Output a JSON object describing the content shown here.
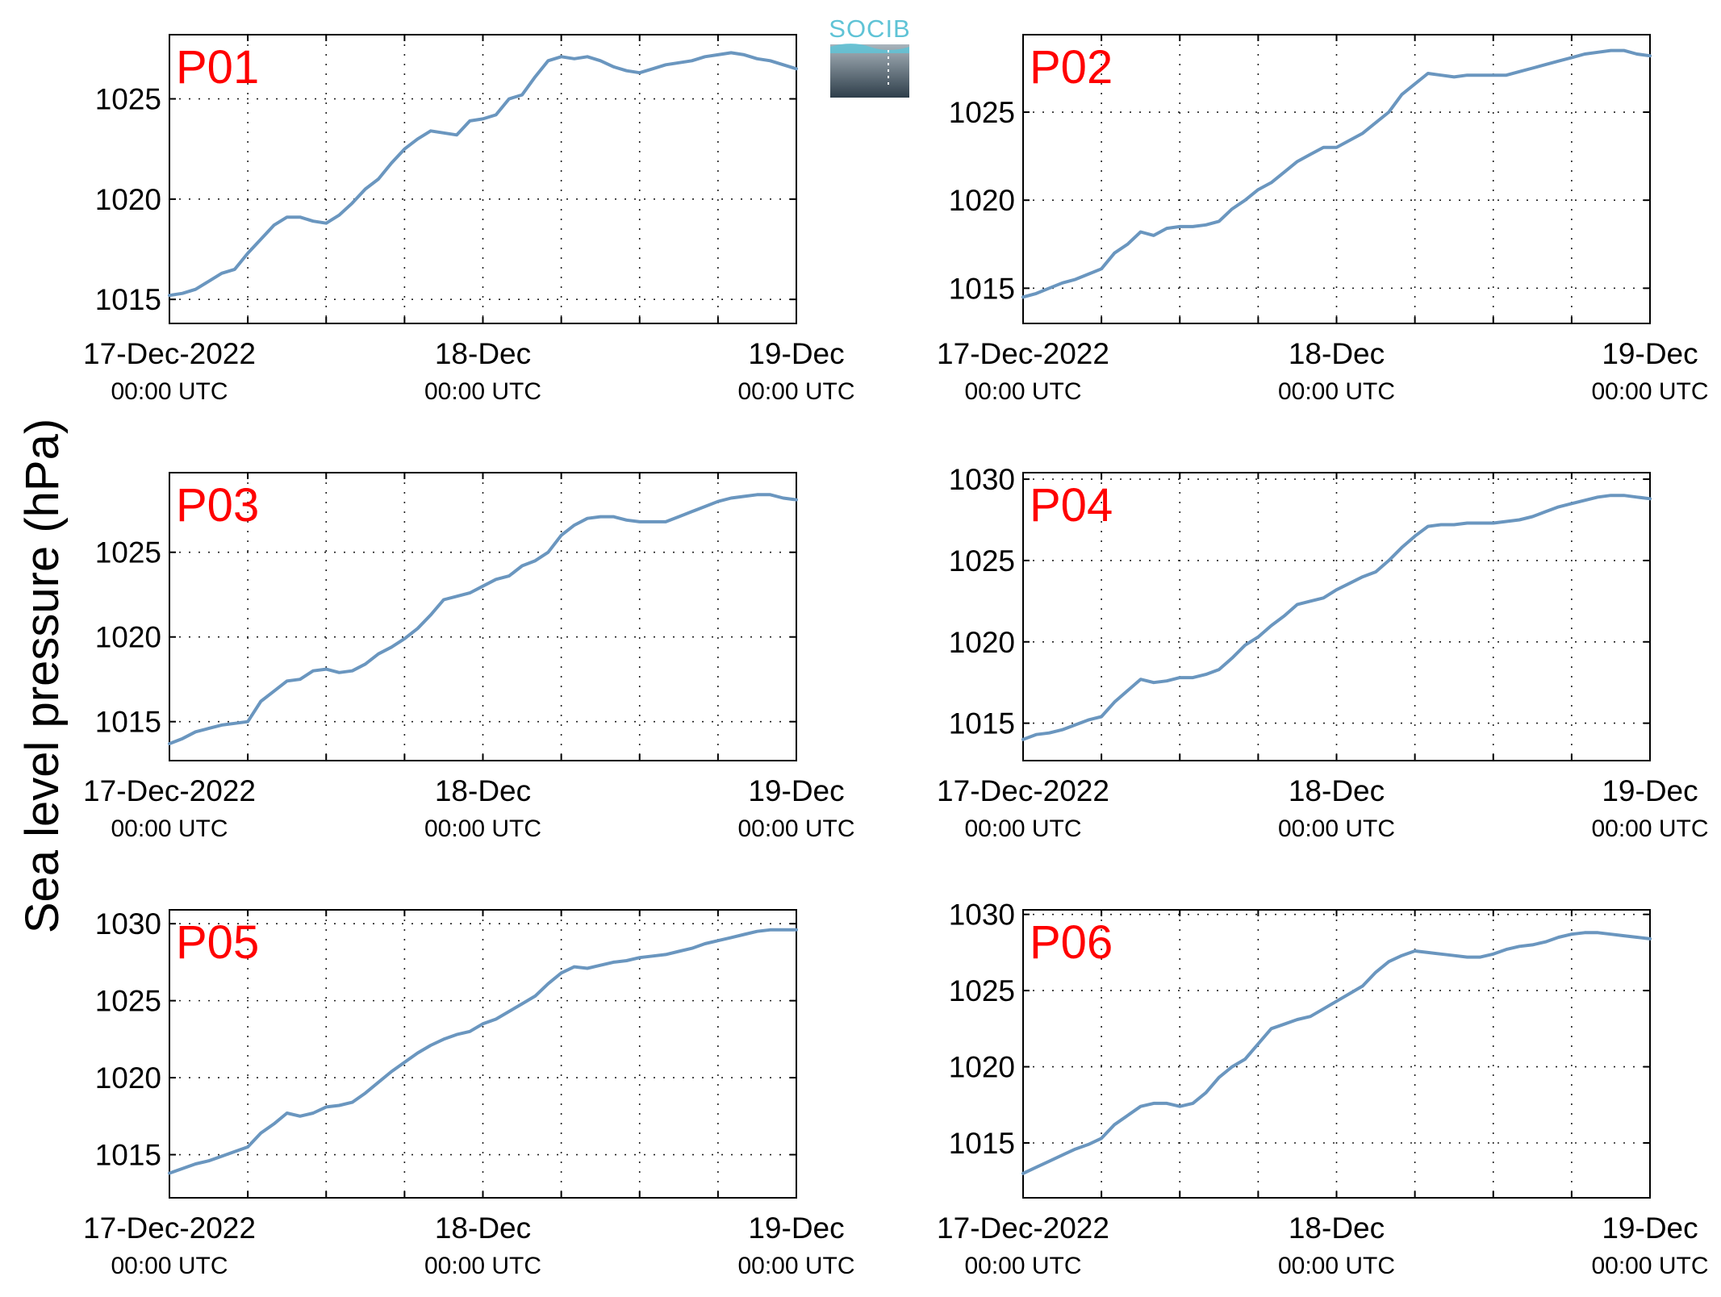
{
  "figure": {
    "ylabel": "Sea level pressure (hPa)",
    "logo_text": "SOCIB",
    "colors": {
      "series": "#6a96bf",
      "panel_label": "#ff0000",
      "logo_cyan": "#5fc3d6",
      "logo_dark": "#2e3e4a"
    }
  },
  "chart_data": [
    {
      "type": "line",
      "title": "P01",
      "xlim_hours": [
        0,
        48
      ],
      "ylim": [
        1013.8,
        1028.2
      ],
      "yticks": [
        "1015",
        "1020",
        "1025"
      ],
      "ytick_values": [
        1015,
        1020,
        1025
      ],
      "xticks": [
        {
          "date": "17-Dec-2022",
          "time": "00:00 UTC"
        },
        {
          "date": "18-Dec",
          "time": "00:00 UTC"
        },
        {
          "date": "19-Dec",
          "time": "00:00 UTC"
        }
      ],
      "grid": true,
      "x": [
        0,
        1,
        2,
        3,
        4,
        5,
        6,
        7,
        8,
        9,
        10,
        11,
        12,
        13,
        14,
        15,
        16,
        17,
        18,
        19,
        20,
        21,
        22,
        23,
        24,
        25,
        26,
        27,
        28,
        29,
        30,
        31,
        32,
        33,
        34,
        35,
        36,
        37,
        38,
        39,
        40,
        41,
        42,
        43,
        44,
        45,
        46,
        47,
        48
      ],
      "values": [
        1015.2,
        1015.3,
        1015.5,
        1015.9,
        1016.3,
        1016.5,
        1017.3,
        1018.0,
        1018.7,
        1019.1,
        1019.1,
        1018.9,
        1018.8,
        1019.2,
        1019.8,
        1020.5,
        1021.0,
        1021.8,
        1022.5,
        1023.0,
        1023.4,
        1023.3,
        1023.2,
        1023.9,
        1024.0,
        1024.2,
        1025.0,
        1025.2,
        1026.1,
        1026.9,
        1027.1,
        1027.0,
        1027.1,
        1026.9,
        1026.6,
        1026.4,
        1026.3,
        1026.5,
        1026.7,
        1026.8,
        1026.9,
        1027.1,
        1027.2,
        1027.3,
        1027.2,
        1027.0,
        1026.9,
        1026.7,
        1026.5
      ]
    },
    {
      "type": "line",
      "title": "P02",
      "xlim_hours": [
        0,
        48
      ],
      "ylim": [
        1013.0,
        1029.4
      ],
      "yticks": [
        "1015",
        "1020",
        "1025"
      ],
      "ytick_values": [
        1015,
        1020,
        1025
      ],
      "xticks": [
        {
          "date": "17-Dec-2022",
          "time": "00:00 UTC"
        },
        {
          "date": "18-Dec",
          "time": "00:00 UTC"
        },
        {
          "date": "19-Dec",
          "time": "00:00 UTC"
        }
      ],
      "grid": true,
      "x": [
        0,
        1,
        2,
        3,
        4,
        5,
        6,
        7,
        8,
        9,
        10,
        11,
        12,
        13,
        14,
        15,
        16,
        17,
        18,
        19,
        20,
        21,
        22,
        23,
        24,
        25,
        26,
        27,
        28,
        29,
        30,
        31,
        32,
        33,
        34,
        35,
        36,
        37,
        38,
        39,
        40,
        41,
        42,
        43,
        44,
        45,
        46,
        47,
        48
      ],
      "values": [
        1014.5,
        1014.7,
        1015.0,
        1015.3,
        1015.5,
        1015.8,
        1016.1,
        1017.0,
        1017.5,
        1018.2,
        1018.0,
        1018.4,
        1018.5,
        1018.5,
        1018.6,
        1018.8,
        1019.5,
        1020.0,
        1020.6,
        1021.0,
        1021.6,
        1022.2,
        1022.6,
        1023.0,
        1023.0,
        1023.4,
        1023.8,
        1024.4,
        1025.0,
        1026.0,
        1026.6,
        1027.2,
        1027.1,
        1027.0,
        1027.1,
        1027.1,
        1027.1,
        1027.1,
        1027.3,
        1027.5,
        1027.7,
        1027.9,
        1028.1,
        1028.3,
        1028.4,
        1028.5,
        1028.5,
        1028.3,
        1028.2
      ]
    },
    {
      "type": "line",
      "title": "P03",
      "xlim_hours": [
        0,
        48
      ],
      "ylim": [
        1012.7,
        1029.7
      ],
      "yticks": [
        "1015",
        "1020",
        "1025"
      ],
      "ytick_values": [
        1015,
        1020,
        1025
      ],
      "xticks": [
        {
          "date": "17-Dec-2022",
          "time": "00:00 UTC"
        },
        {
          "date": "18-Dec",
          "time": "00:00 UTC"
        },
        {
          "date": "19-Dec",
          "time": "00:00 UTC"
        }
      ],
      "grid": true,
      "x": [
        0,
        1,
        2,
        3,
        4,
        5,
        6,
        7,
        8,
        9,
        10,
        11,
        12,
        13,
        14,
        15,
        16,
        17,
        18,
        19,
        20,
        21,
        22,
        23,
        24,
        25,
        26,
        27,
        28,
        29,
        30,
        31,
        32,
        33,
        34,
        35,
        36,
        37,
        38,
        39,
        40,
        41,
        42,
        43,
        44,
        45,
        46,
        47,
        48
      ],
      "values": [
        1013.7,
        1014.0,
        1014.4,
        1014.6,
        1014.8,
        1014.9,
        1015.0,
        1016.2,
        1016.8,
        1017.4,
        1017.5,
        1018.0,
        1018.1,
        1017.9,
        1018.0,
        1018.4,
        1019.0,
        1019.4,
        1019.9,
        1020.5,
        1021.3,
        1022.2,
        1022.4,
        1022.6,
        1023.0,
        1023.4,
        1023.6,
        1024.2,
        1024.5,
        1025.0,
        1026.0,
        1026.6,
        1027.0,
        1027.1,
        1027.1,
        1026.9,
        1026.8,
        1026.8,
        1026.8,
        1027.1,
        1027.4,
        1027.7,
        1028.0,
        1028.2,
        1028.3,
        1028.4,
        1028.4,
        1028.2,
        1028.1
      ]
    },
    {
      "type": "line",
      "title": "P04",
      "xlim_hours": [
        0,
        48
      ],
      "ylim": [
        1012.7,
        1030.4
      ],
      "yticks": [
        "1015",
        "1020",
        "1025",
        "1030"
      ],
      "ytick_values": [
        1015,
        1020,
        1025,
        1030
      ],
      "xticks": [
        {
          "date": "17-Dec-2022",
          "time": "00:00 UTC"
        },
        {
          "date": "18-Dec",
          "time": "00:00 UTC"
        },
        {
          "date": "19-Dec",
          "time": "00:00 UTC"
        }
      ],
      "grid": true,
      "x": [
        0,
        1,
        2,
        3,
        4,
        5,
        6,
        7,
        8,
        9,
        10,
        11,
        12,
        13,
        14,
        15,
        16,
        17,
        18,
        19,
        20,
        21,
        22,
        23,
        24,
        25,
        26,
        27,
        28,
        29,
        30,
        31,
        32,
        33,
        34,
        35,
        36,
        37,
        38,
        39,
        40,
        41,
        42,
        43,
        44,
        45,
        46,
        47,
        48
      ],
      "values": [
        1014.0,
        1014.3,
        1014.4,
        1014.6,
        1014.9,
        1015.2,
        1015.4,
        1016.3,
        1017.0,
        1017.7,
        1017.5,
        1017.6,
        1017.8,
        1017.8,
        1018.0,
        1018.3,
        1019.0,
        1019.8,
        1020.3,
        1021.0,
        1021.6,
        1022.3,
        1022.5,
        1022.7,
        1023.2,
        1023.6,
        1024.0,
        1024.3,
        1025.0,
        1025.8,
        1026.5,
        1027.1,
        1027.2,
        1027.2,
        1027.3,
        1027.3,
        1027.3,
        1027.4,
        1027.5,
        1027.7,
        1028.0,
        1028.3,
        1028.5,
        1028.7,
        1028.9,
        1029.0,
        1029.0,
        1028.9,
        1028.8
      ]
    },
    {
      "type": "line",
      "title": "P05",
      "xlim_hours": [
        0,
        48
      ],
      "ylim": [
        1012.2,
        1030.9
      ],
      "yticks": [
        "1015",
        "1020",
        "1025",
        "1030"
      ],
      "ytick_values": [
        1015,
        1020,
        1025,
        1030
      ],
      "xticks": [
        {
          "date": "17-Dec-2022",
          "time": "00:00 UTC"
        },
        {
          "date": "18-Dec",
          "time": "00:00 UTC"
        },
        {
          "date": "19-Dec",
          "time": "00:00 UTC"
        }
      ],
      "grid": true,
      "x": [
        0,
        1,
        2,
        3,
        4,
        5,
        6,
        7,
        8,
        9,
        10,
        11,
        12,
        13,
        14,
        15,
        16,
        17,
        18,
        19,
        20,
        21,
        22,
        23,
        24,
        25,
        26,
        27,
        28,
        29,
        30,
        31,
        32,
        33,
        34,
        35,
        36,
        37,
        38,
        39,
        40,
        41,
        42,
        43,
        44,
        45,
        46,
        47,
        48
      ],
      "values": [
        1013.8,
        1014.1,
        1014.4,
        1014.6,
        1014.9,
        1015.2,
        1015.5,
        1016.4,
        1017.0,
        1017.7,
        1017.5,
        1017.7,
        1018.1,
        1018.2,
        1018.4,
        1019.0,
        1019.7,
        1020.4,
        1021.0,
        1021.6,
        1022.1,
        1022.5,
        1022.8,
        1023.0,
        1023.5,
        1023.8,
        1024.3,
        1024.8,
        1025.3,
        1026.1,
        1026.8,
        1027.2,
        1027.1,
        1027.3,
        1027.5,
        1027.6,
        1027.8,
        1027.9,
        1028.0,
        1028.2,
        1028.4,
        1028.7,
        1028.9,
        1029.1,
        1029.3,
        1029.5,
        1029.6,
        1029.6,
        1029.6
      ]
    },
    {
      "type": "line",
      "title": "P06",
      "xlim_hours": [
        0,
        48
      ],
      "ylim": [
        1011.4,
        1030.3
      ],
      "yticks": [
        "1015",
        "1020",
        "1025",
        "1030"
      ],
      "ytick_values": [
        1015,
        1020,
        1025,
        1030
      ],
      "xticks": [
        {
          "date": "17-Dec-2022",
          "time": "00:00 UTC"
        },
        {
          "date": "18-Dec",
          "time": "00:00 UTC"
        },
        {
          "date": "19-Dec",
          "time": "00:00 UTC"
        }
      ],
      "grid": true,
      "x": [
        0,
        1,
        2,
        3,
        4,
        5,
        6,
        7,
        8,
        9,
        10,
        11,
        12,
        13,
        14,
        15,
        16,
        17,
        18,
        19,
        20,
        21,
        22,
        23,
        24,
        25,
        26,
        27,
        28,
        29,
        30,
        31,
        32,
        33,
        34,
        35,
        36,
        37,
        38,
        39,
        40,
        41,
        42,
        43,
        44,
        45,
        46,
        47,
        48
      ],
      "values": [
        1013.0,
        1013.4,
        1013.8,
        1014.2,
        1014.6,
        1014.9,
        1015.3,
        1016.2,
        1016.8,
        1017.4,
        1017.6,
        1017.6,
        1017.4,
        1017.6,
        1018.3,
        1019.3,
        1020.0,
        1020.5,
        1021.5,
        1022.5,
        1022.8,
        1023.1,
        1023.3,
        1023.8,
        1024.3,
        1024.8,
        1025.3,
        1026.2,
        1026.9,
        1027.3,
        1027.6,
        1027.5,
        1027.4,
        1027.3,
        1027.2,
        1027.2,
        1027.4,
        1027.7,
        1027.9,
        1028.0,
        1028.2,
        1028.5,
        1028.7,
        1028.8,
        1028.8,
        1028.7,
        1028.6,
        1028.5,
        1028.4
      ]
    }
  ]
}
